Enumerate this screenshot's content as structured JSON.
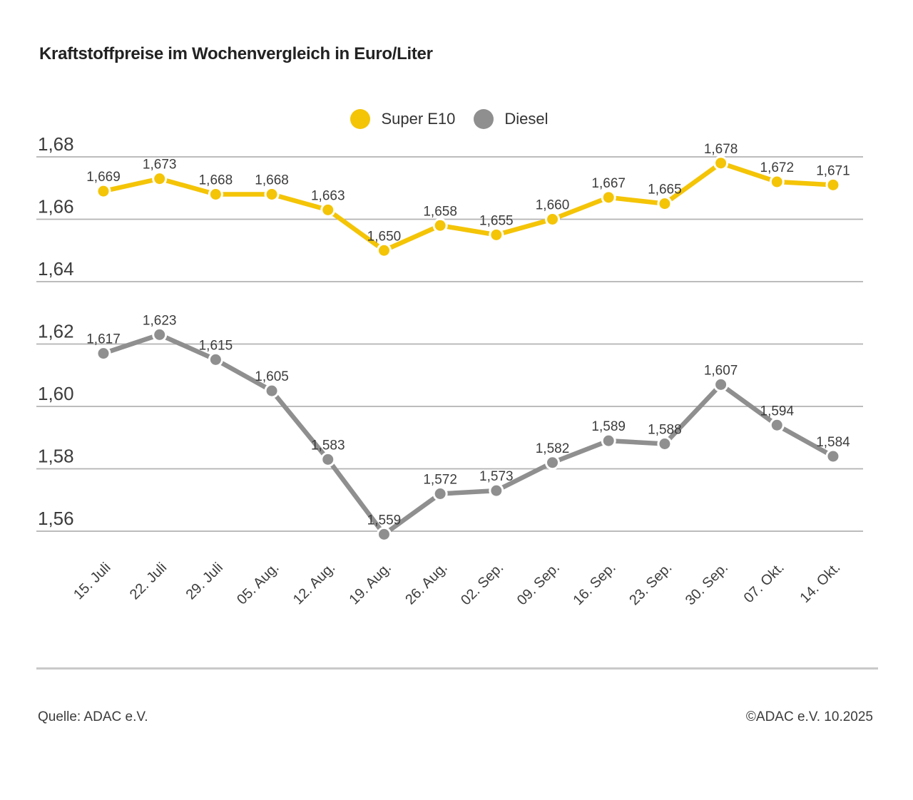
{
  "chart_data": {
    "type": "line",
    "title": "Kraftstoffpreise im Wochenvergleich in Euro/Liter",
    "xlabel": "",
    "ylabel": "",
    "unit": "Euro/Liter",
    "grid": true,
    "legend_position": "top-center",
    "ylim": [
      1.56,
      1.68
    ],
    "yticks": [
      "1,68",
      "1,66",
      "1,64",
      "1,62",
      "1,60",
      "1,58",
      "1,56"
    ],
    "categories": [
      "15. Juli",
      "22. Juli",
      "29. Juli",
      "05. Aug.",
      "12. Aug.",
      "19. Aug.",
      "26. Aug.",
      "02. Sep.",
      "09. Sep.",
      "16. Sep.",
      "23. Sep.",
      "30. Sep.",
      "07. Okt.",
      "14. Okt."
    ],
    "series": [
      {
        "name": "Super E10",
        "color": "#f4c406",
        "values": [
          1.669,
          1.673,
          1.668,
          1.668,
          1.663,
          1.65,
          1.658,
          1.655,
          1.66,
          1.667,
          1.665,
          1.678,
          1.672,
          1.671
        ],
        "labels": [
          "1,669",
          "1,673",
          "1,668",
          "1,668",
          "1,663",
          "1,650",
          "1,658",
          "1,655",
          "1,660",
          "1,667",
          "1,665",
          "1,678",
          "1,672",
          "1,671"
        ]
      },
      {
        "name": "Diesel",
        "color": "#8f8f8f",
        "values": [
          1.617,
          1.623,
          1.615,
          1.605,
          1.583,
          1.559,
          1.572,
          1.573,
          1.582,
          1.589,
          1.588,
          1.607,
          1.594,
          1.584
        ],
        "labels": [
          "1,617",
          "1,623",
          "1,615",
          "1,605",
          "1,583",
          "1,559",
          "1,572",
          "1,573",
          "1,582",
          "1,589",
          "1,588",
          "1,607",
          "1,594",
          "1,584"
        ]
      }
    ]
  },
  "legend": [
    {
      "label": "Super E10",
      "color": "#f4c406"
    },
    {
      "label": "Diesel",
      "color": "#8f8f8f"
    }
  ],
  "footer": {
    "source": "Quelle: ADAC e.V.",
    "copyright": "©ADAC e.V. 10.2025"
  },
  "colors": {
    "grid": "#b3b3b3",
    "text": "#3c3c3c",
    "title": "#222222",
    "divider": "#c9c9c9",
    "background": "#ffffff"
  }
}
